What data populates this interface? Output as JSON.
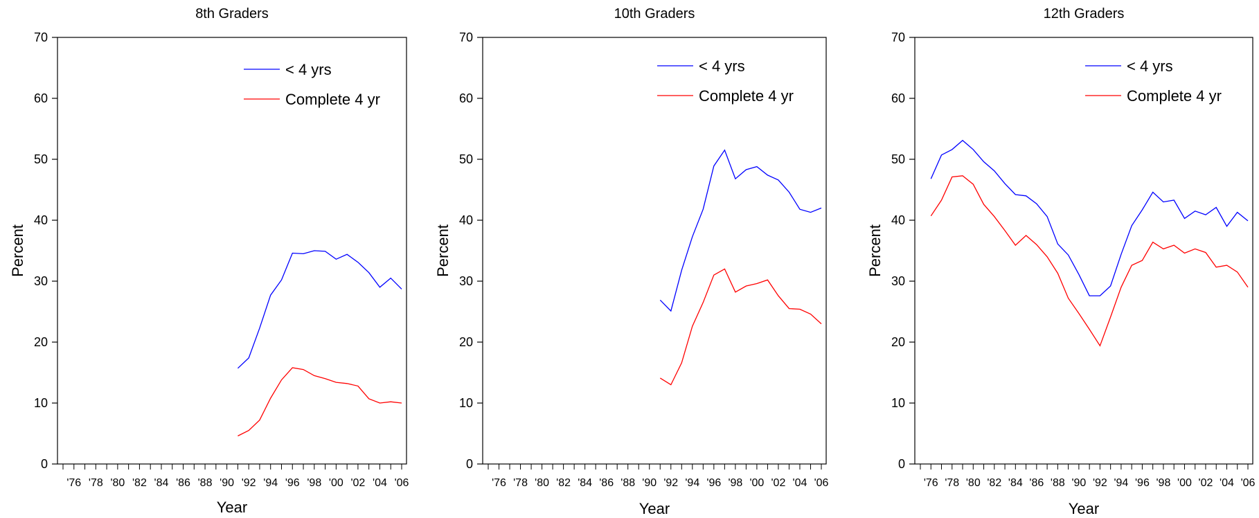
{
  "colors": {
    "series_1": "#0000ff",
    "series_2": "#ff0000",
    "axis": "#000000"
  },
  "chart_data": [
    {
      "type": "line",
      "title": "8th Graders",
      "xlabel": "Year",
      "ylabel": "Percent",
      "ylim": [
        0,
        70
      ],
      "yticks": [
        0,
        10,
        20,
        30,
        40,
        50,
        60,
        70
      ],
      "xlim": [
        1975,
        2006
      ],
      "xtick_labels": [
        "'76",
        "'78",
        "'80",
        "'82",
        "'84",
        "'86",
        "'88",
        "'90",
        "'92",
        "'94",
        "'96",
        "'98",
        "'00",
        "'02",
        "'04",
        "'06"
      ],
      "legend": "top-right",
      "x": [
        1991,
        1992,
        1993,
        1994,
        1995,
        1996,
        1997,
        1998,
        1999,
        2000,
        2001,
        2002,
        2003,
        2004,
        2005,
        2006
      ],
      "series": [
        {
          "name": "< 4 yrs",
          "values": [
            15.7,
            17.4,
            22.3,
            27.7,
            30.2,
            34.6,
            34.5,
            35.0,
            34.9,
            33.6,
            34.4,
            33.1,
            31.4,
            29.0,
            30.5,
            28.7
          ]
        },
        {
          "name": "Complete 4 yr",
          "values": [
            4.6,
            5.5,
            7.2,
            10.8,
            13.8,
            15.8,
            15.5,
            14.5,
            14.0,
            13.4,
            13.2,
            12.8,
            10.7,
            10.0,
            10.2,
            10.0
          ]
        }
      ]
    },
    {
      "type": "line",
      "title": "10th Graders",
      "xlabel": "Year",
      "ylabel": "Percent",
      "ylim": [
        0,
        70
      ],
      "yticks": [
        0,
        10,
        20,
        30,
        40,
        50,
        60,
        70
      ],
      "xlim": [
        1975,
        2006
      ],
      "xtick_labels": [
        "'76",
        "'78",
        "'80",
        "'82",
        "'84",
        "'86",
        "'88",
        "'90",
        "'92",
        "'94",
        "'96",
        "'98",
        "'00",
        "'02",
        "'04",
        "'06"
      ],
      "legend": "top-right",
      "x": [
        1991,
        1992,
        1993,
        1994,
        1995,
        1996,
        1997,
        1998,
        1999,
        2000,
        2001,
        2002,
        2003,
        2004,
        2005,
        2006
      ],
      "series": [
        {
          "name": "< 4 yrs",
          "values": [
            26.9,
            25.1,
            31.8,
            37.3,
            41.8,
            48.9,
            51.5,
            46.8,
            48.3,
            48.8,
            47.4,
            46.6,
            44.6,
            41.8,
            41.3,
            42.0
          ]
        },
        {
          "name": "Complete 4 yr",
          "values": [
            14.1,
            13.0,
            16.6,
            22.6,
            26.5,
            31.0,
            32.0,
            28.2,
            29.2,
            29.6,
            30.2,
            27.6,
            25.5,
            25.4,
            24.6,
            23.0
          ]
        }
      ]
    },
    {
      "type": "line",
      "title": "12th Graders",
      "xlabel": "Year",
      "ylabel": "Percent",
      "ylim": [
        0,
        70
      ],
      "yticks": [
        0,
        10,
        20,
        30,
        40,
        50,
        60,
        70
      ],
      "xlim": [
        1975,
        2006
      ],
      "xtick_labels": [
        "'76",
        "'78",
        "'80",
        "'82",
        "'84",
        "'86",
        "'88",
        "'90",
        "'92",
        "'94",
        "'96",
        "'98",
        "'00",
        "'02",
        "'04",
        "'06"
      ],
      "legend": "top-right",
      "x": [
        1976,
        1977,
        1978,
        1979,
        1980,
        1981,
        1982,
        1983,
        1984,
        1985,
        1986,
        1987,
        1988,
        1989,
        1990,
        1991,
        1992,
        1993,
        1994,
        1995,
        1996,
        1997,
        1998,
        1999,
        2000,
        2001,
        2002,
        2003,
        2004,
        2005,
        2006
      ],
      "series": [
        {
          "name": "< 4 yrs",
          "values": [
            46.8,
            50.7,
            51.6,
            53.1,
            51.6,
            49.6,
            48.1,
            46.0,
            44.2,
            44.0,
            42.7,
            40.6,
            36.1,
            34.3,
            31.1,
            27.6,
            27.6,
            29.2,
            34.4,
            39.1,
            41.7,
            44.6,
            43.0,
            43.3,
            40.3,
            41.5,
            40.9,
            42.1,
            39.0,
            41.3,
            39.9
          ]
        },
        {
          "name": "Complete 4 yr",
          "values": [
            40.7,
            43.3,
            47.1,
            47.3,
            45.9,
            42.6,
            40.6,
            38.3,
            35.9,
            37.5,
            36.0,
            34.0,
            31.3,
            27.2,
            24.7,
            22.1,
            19.4,
            24.1,
            29.0,
            32.6,
            33.4,
            36.4,
            35.3,
            35.9,
            34.6,
            35.3,
            34.7,
            32.3,
            32.6,
            31.5,
            29.0
          ]
        }
      ]
    }
  ]
}
